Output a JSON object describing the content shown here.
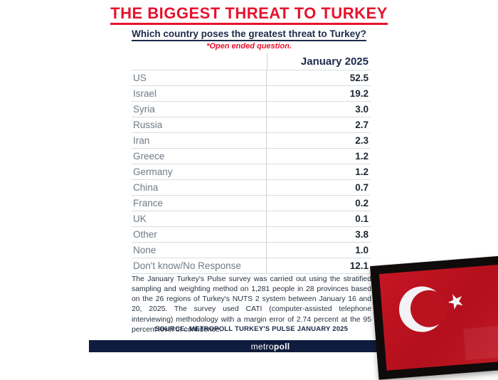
{
  "header": {
    "title": "THE BIGGEST THREAT TO TURKEY",
    "subtitle": "Which country poses the greatest threat to Turkey?",
    "note": "*Open ended question."
  },
  "chart_data": {
    "type": "table",
    "title": "THE BIGGEST THREAT TO TURKEY",
    "question": "Which country poses the greatest threat to Turkey?",
    "column_header": "January 2025",
    "categories": [
      "US",
      "Israel",
      "Syria",
      "Russia",
      "Iran",
      "Greece",
      "Germany",
      "China",
      "France",
      "UK",
      "Other",
      "None",
      "Don't know/No Response"
    ],
    "values": [
      52.5,
      19.2,
      3.0,
      2.7,
      2.3,
      1.2,
      1.2,
      0.7,
      0.2,
      0.1,
      3.8,
      1.0,
      12.1
    ],
    "rows": [
      {
        "label": "US",
        "value": "52.5"
      },
      {
        "label": "Israel",
        "value": "19.2"
      },
      {
        "label": "Syria",
        "value": "3.0"
      },
      {
        "label": "Russia",
        "value": "2.7"
      },
      {
        "label": "Iran",
        "value": "2.3"
      },
      {
        "label": "Greece",
        "value": "1.2"
      },
      {
        "label": "Germany",
        "value": "1.2"
      },
      {
        "label": "China",
        "value": "0.7"
      },
      {
        "label": "France",
        "value": "0.2"
      },
      {
        "label": "UK",
        "value": "0.1"
      },
      {
        "label": "Other",
        "value": "3.8"
      },
      {
        "label": "None",
        "value": "1.0"
      },
      {
        "label": "Don't know/No Response",
        "value": "12.1"
      }
    ]
  },
  "footnote": "The January Turkey's Pulse survey was carried out using the stratified sampling and weighting method on 1,281 people in 28 provinces based on the 26 regions of Turkey's NUTS 2 system between January 16 and 20, 2025. The survey used CATI (computer-assisted telephone interviewing) methodology with a margin error of 2.74 percent at the 95 percent level of confidence.",
  "source": "SOURCE: METROPOLL TURKEY'S PULSE JANUARY 2025",
  "footer": {
    "brand_part1": "metro",
    "brand_part2": "poll"
  },
  "flag": {
    "name": "turkish-flag-framed-photo",
    "star_glyph": "★"
  },
  "colors": {
    "title_red": "#e8112d",
    "navy": "#1b2a4a",
    "value_ink": "#1d2733",
    "label_muted": "#6f7a85",
    "row_line": "#d9dde1",
    "footer_bar": "#101c3d",
    "flag_red": "#bf1220",
    "frame_black": "#0f0b0b"
  }
}
